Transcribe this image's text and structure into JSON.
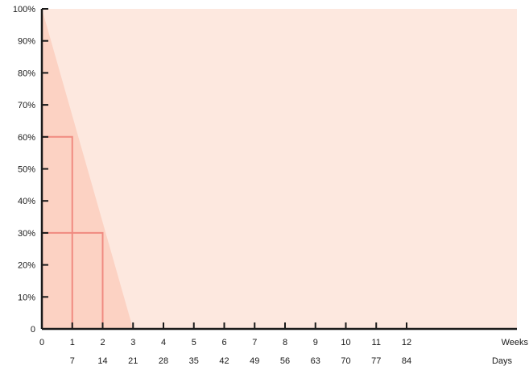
{
  "chart_data": {
    "type": "area",
    "title": "",
    "x_unit_label": "Weeks",
    "x2_unit_label": "Days",
    "xlim": [
      0,
      16
    ],
    "ylim": [
      0,
      100
    ],
    "x_ticks": [
      0,
      1,
      2,
      3,
      4,
      5,
      6,
      7,
      8,
      9,
      10,
      11,
      12
    ],
    "x_tick_labels": [
      "0",
      "1",
      "2",
      "3",
      "4",
      "5",
      "6",
      "7",
      "8",
      "9",
      "10",
      "11",
      "12"
    ],
    "x2_tick_labels": [
      "",
      "7",
      "14",
      "21",
      "28",
      "35",
      "42",
      "49",
      "56",
      "63",
      "70",
      "77",
      "84"
    ],
    "y_ticks": [
      0,
      10,
      20,
      30,
      40,
      50,
      60,
      70,
      80,
      90,
      100
    ],
    "y_tick_labels": [
      "0",
      "10%",
      "20%",
      "30%",
      "40%",
      "50%",
      "60%",
      "70%",
      "80%",
      "90%",
      "100%"
    ],
    "series": [
      {
        "type": "area",
        "x": [
          0,
          3
        ],
        "y": [
          100,
          0
        ]
      }
    ],
    "reference_lines": [
      {
        "x": 1,
        "y": 60
      },
      {
        "x": 2,
        "y": 30
      }
    ],
    "colors": {
      "background": "#fde8df",
      "area": "#fcd2c3",
      "reference": "#f08a80",
      "axis": "#1a1a1a"
    },
    "grid": false
  }
}
